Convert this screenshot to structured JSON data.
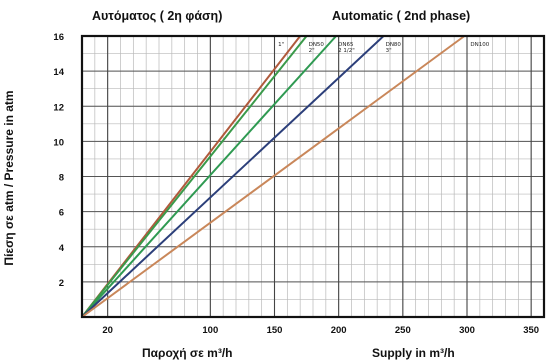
{
  "chart_data": {
    "type": "line",
    "title_left": "Αυτόματος ( 2η φάση)",
    "title_right": "Automatic ( 2nd phase)",
    "xlabel_left": "Παροχή σε m³/h",
    "xlabel_right": "Supply in m³/h",
    "ylabel": "Πίεση σε atm / Pressure in atm",
    "xlim": [
      0,
      360
    ],
    "ylim": [
      0,
      16
    ],
    "x_ticks": [
      20,
      100,
      150,
      200,
      250,
      300,
      350
    ],
    "x_tick_labels": [
      "20",
      "100",
      "150",
      "200",
      "250",
      "300",
      "350"
    ],
    "y_ticks": [
      2,
      4,
      6,
      8,
      10,
      12,
      14,
      16
    ],
    "y_tick_labels": [
      "2",
      "4",
      "6",
      "8",
      "10",
      "12",
      "14",
      "16"
    ],
    "grid": true,
    "series": [
      {
        "name": "1\"",
        "color": "#b05a3c",
        "x": [
          0,
          170
        ],
        "y": [
          0,
          16
        ]
      },
      {
        "name": "DN50 2\"",
        "color": "#3a9a4a",
        "x": [
          0,
          175
        ],
        "y": [
          0,
          16
        ]
      },
      {
        "name": "DN65 2 1/2\"",
        "color": "#2f9a52",
        "x": [
          0,
          198
        ],
        "y": [
          0,
          16
        ]
      },
      {
        "name": "DN80 3\"",
        "color": "#2c3f7a",
        "x": [
          0,
          235
        ],
        "y": [
          0,
          16
        ]
      },
      {
        "name": "DN100",
        "color": "#c9875a",
        "x": [
          0,
          298
        ],
        "y": [
          0,
          16
        ]
      }
    ]
  }
}
